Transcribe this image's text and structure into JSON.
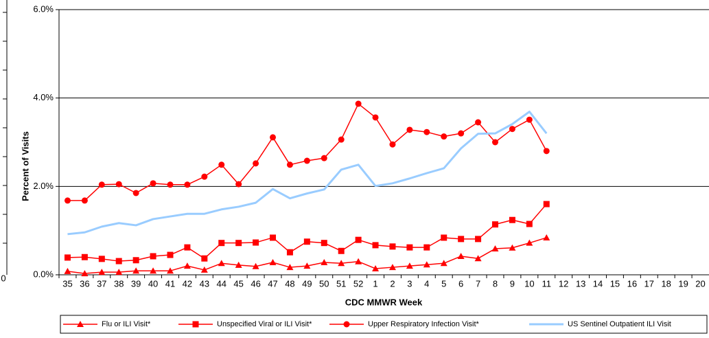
{
  "cropped_axis_label": "0",
  "chart_data": {
    "type": "line",
    "y_label": "Percent of Visits",
    "x_label": "CDC MMWR Week",
    "categories": [
      "35",
      "36",
      "37",
      "38",
      "39",
      "40",
      "41",
      "42",
      "43",
      "44",
      "45",
      "46",
      "47",
      "48",
      "49",
      "50",
      "51",
      "52",
      "1",
      "2",
      "3",
      "4",
      "5",
      "6",
      "7",
      "8",
      "9",
      "10",
      "11",
      "12",
      "13",
      "14",
      "15",
      "16",
      "17",
      "18",
      "19",
      "20"
    ],
    "ylim": [
      0,
      6
    ],
    "yticks": [
      {
        "value": 0,
        "label": "0.0%"
      },
      {
        "value": 2,
        "label": "2.0%"
      },
      {
        "value": 4,
        "label": "4.0%"
      },
      {
        "value": 6,
        "label": "6.0%"
      }
    ],
    "grid": true,
    "legend": "bottom",
    "series": [
      {
        "name": "Flu or ILI Visit*",
        "color": "#ff0000",
        "marker": "triangle",
        "values": [
          0.08,
          0.03,
          0.06,
          0.06,
          0.09,
          0.09,
          0.09,
          0.2,
          0.11,
          0.26,
          0.22,
          0.19,
          0.28,
          0.17,
          0.2,
          0.28,
          0.26,
          0.3,
          0.14,
          0.17,
          0.2,
          0.23,
          0.26,
          0.42,
          0.37,
          0.59,
          0.61,
          0.72,
          0.84,
          null,
          null,
          null,
          null,
          null,
          null,
          null,
          null,
          null
        ]
      },
      {
        "name": "Unspecified Viral or ILI Visit*",
        "color": "#ff0000",
        "marker": "square",
        "values": [
          0.39,
          0.4,
          0.36,
          0.31,
          0.33,
          0.42,
          0.45,
          0.62,
          0.37,
          0.72,
          0.72,
          0.73,
          0.84,
          0.51,
          0.75,
          0.72,
          0.54,
          0.79,
          0.67,
          0.64,
          0.62,
          0.62,
          0.84,
          0.81,
          0.81,
          1.14,
          1.24,
          1.15,
          1.6,
          null,
          null,
          null,
          null,
          null,
          null,
          null,
          null,
          null
        ]
      },
      {
        "name": "Upper Respiratory Infection Visit*",
        "color": "#ff0000",
        "marker": "circle",
        "values": [
          1.68,
          1.68,
          2.04,
          2.05,
          1.85,
          2.07,
          2.04,
          2.04,
          2.22,
          2.49,
          2.05,
          2.52,
          3.11,
          2.49,
          2.58,
          2.64,
          3.06,
          3.87,
          3.56,
          2.95,
          3.28,
          3.23,
          3.13,
          3.2,
          3.45,
          3.0,
          3.3,
          3.51,
          2.8,
          null,
          null,
          null,
          null,
          null,
          null,
          null,
          null,
          null
        ]
      },
      {
        "name": "US Sentinel Outpatient ILI Visit",
        "color": "#99ccff",
        "marker": "none",
        "values": [
          0.92,
          0.96,
          1.09,
          1.17,
          1.12,
          1.26,
          1.32,
          1.38,
          1.38,
          1.48,
          1.54,
          1.63,
          1.94,
          1.73,
          1.84,
          1.93,
          2.38,
          2.49,
          2.01,
          2.07,
          2.18,
          2.3,
          2.41,
          2.86,
          3.19,
          3.2,
          3.41,
          3.69,
          3.2,
          null,
          null,
          null,
          null,
          null,
          null,
          null,
          null,
          null
        ]
      }
    ]
  }
}
